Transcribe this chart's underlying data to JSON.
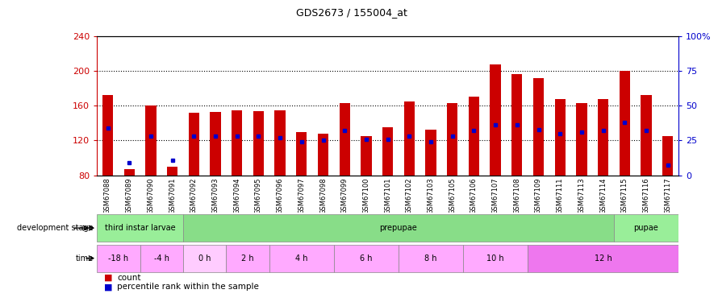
{
  "title": "GDS2673 / 155004_at",
  "samples": [
    "GSM67088",
    "GSM67089",
    "GSM67090",
    "GSM67091",
    "GSM67092",
    "GSM67093",
    "GSM67094",
    "GSM67095",
    "GSM67096",
    "GSM67097",
    "GSM67098",
    "GSM67099",
    "GSM67100",
    "GSM67101",
    "GSM67102",
    "GSM67103",
    "GSM67105",
    "GSM67106",
    "GSM67107",
    "GSM67108",
    "GSM67109",
    "GSM67111",
    "GSM67113",
    "GSM67114",
    "GSM67115",
    "GSM67116",
    "GSM67117"
  ],
  "count_values": [
    172,
    87,
    160,
    90,
    152,
    153,
    155,
    154,
    155,
    130,
    128,
    163,
    125,
    135,
    165,
    132,
    163,
    170,
    208,
    196,
    192,
    168,
    163,
    168,
    200,
    172,
    125
  ],
  "percentile_values": [
    34,
    9,
    28,
    11,
    28,
    28,
    28,
    28,
    27,
    24,
    25,
    32,
    26,
    26,
    28,
    24,
    28,
    32,
    36,
    36,
    33,
    30,
    31,
    32,
    38,
    32,
    7
  ],
  "ymin": 80,
  "ymax": 240,
  "yticks": [
    80,
    120,
    160,
    200,
    240
  ],
  "right_yticks": [
    0,
    25,
    50,
    75,
    100
  ],
  "bar_color": "#cc0000",
  "dot_color": "#0000cc",
  "bar_width": 0.5,
  "dev_groups": [
    {
      "label": "third instar larvae",
      "start": 0,
      "end": 4,
      "color": "#99ee99"
    },
    {
      "label": "prepupae",
      "start": 4,
      "end": 24,
      "color": "#88dd88"
    },
    {
      "label": "pupae",
      "start": 24,
      "end": 27,
      "color": "#99ee99"
    }
  ],
  "time_groups": [
    {
      "label": "-18 h",
      "start": 0,
      "end": 2,
      "color": "#ffaaff"
    },
    {
      "label": "-4 h",
      "start": 2,
      "end": 4,
      "color": "#ffaaff"
    },
    {
      "label": "0 h",
      "start": 4,
      "end": 6,
      "color": "#ffccff"
    },
    {
      "label": "2 h",
      "start": 6,
      "end": 8,
      "color": "#ffaaff"
    },
    {
      "label": "4 h",
      "start": 8,
      "end": 11,
      "color": "#ffaaff"
    },
    {
      "label": "6 h",
      "start": 11,
      "end": 14,
      "color": "#ffaaff"
    },
    {
      "label": "8 h",
      "start": 14,
      "end": 17,
      "color": "#ffaaff"
    },
    {
      "label": "10 h",
      "start": 17,
      "end": 20,
      "color": "#ffaaff"
    },
    {
      "label": "12 h",
      "start": 20,
      "end": 27,
      "color": "#ee77ee"
    }
  ],
  "tick_label_color": "#cc0000",
  "right_tick_color": "#0000cc"
}
